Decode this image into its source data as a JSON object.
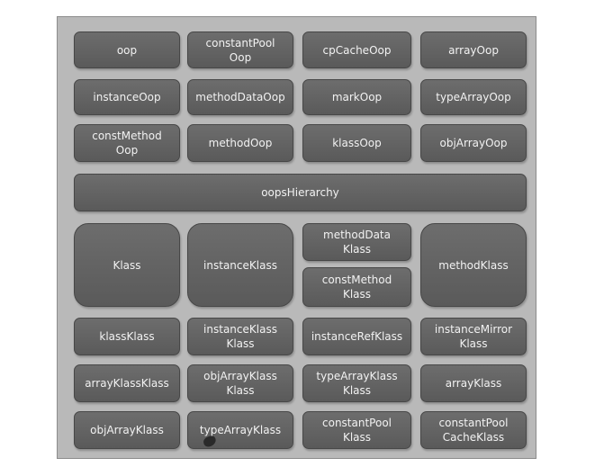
{
  "boxes": {
    "oop": "oop",
    "constantPoolOop": "constantPool\nOop",
    "cpCacheOop": "cpCacheOop",
    "arrayOop": "arrayOop",
    "instanceOop": "instanceOop",
    "methodDataOop": "methodDataOop",
    "markOop": "markOop",
    "typeArrayOop": "typeArrayOop",
    "constMethodOop": "constMethod\nOop",
    "methodOop": "methodOop",
    "klassOop": "klassOop",
    "objArrayOop": "objArrayOop",
    "oopsHierarchy": "oopsHierarchy",
    "Klass": "Klass",
    "instanceKlass": "instanceKlass",
    "methodDataKlass": "methodData\nKlass",
    "constMethodKlass": "constMethod\nKlass",
    "methodKlass": "methodKlass",
    "klassKlass": "klassKlass",
    "instanceKlassKlass": "instanceKlass\nKlass",
    "instanceRefKlass": "instanceRefKlass",
    "instanceMirrorKlass": "instanceMirror\nKlass",
    "arrayKlassKlass": "arrayKlassKlass",
    "objArrayKlassKlass": "objArrayKlass\nKlass",
    "typeArrayKlassKlass": "typeArrayKlass\nKlass",
    "arrayKlass": "arrayKlass",
    "objArrayKlass": "objArrayKlass",
    "typeArrayKlass": "typeArrayKlass",
    "constantPoolKlass": "constantPool\nKlass",
    "constantPoolCacheKlass": "constantPool\nCacheKlass"
  }
}
